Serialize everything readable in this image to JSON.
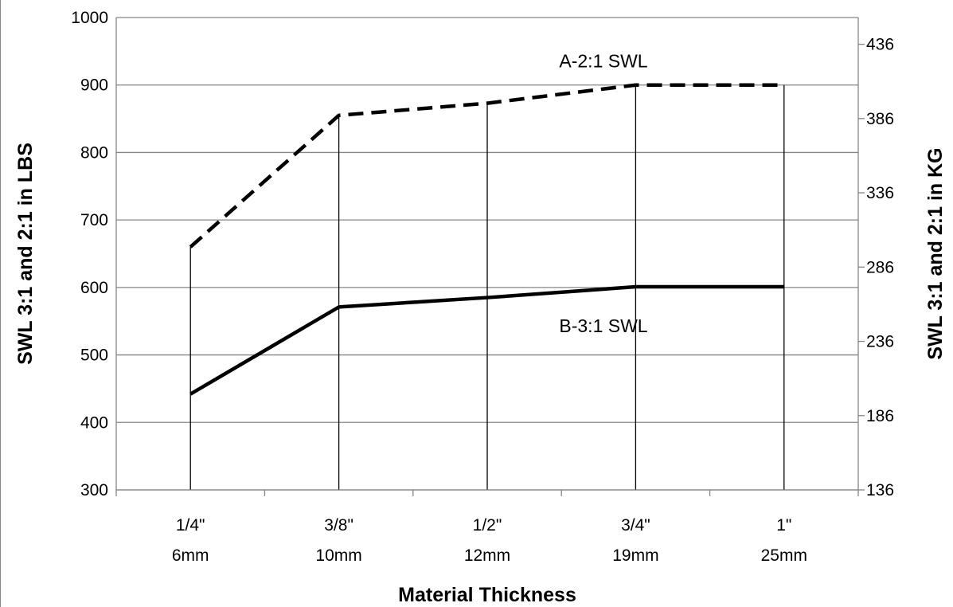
{
  "chart_data": {
    "type": "line",
    "title": "",
    "xlabel": "Material Thickness",
    "ylabel": "SWL 3:1 and 2:1 in LBS",
    "y2label": "SWL 3:1 and 2:1 in KG",
    "categories": [
      {
        "line1": "1/4\"",
        "line2": "6mm"
      },
      {
        "line1": "3/8\"",
        "line2": "10mm"
      },
      {
        "line1": "1/2\"",
        "line2": "12mm"
      },
      {
        "line1": "3/4\"",
        "line2": "19mm"
      },
      {
        "line1": "1\"",
        "line2": "25mm"
      }
    ],
    "ylim": [
      300,
      1000
    ],
    "yticks": [
      "300",
      "400",
      "500",
      "600",
      "700",
      "800",
      "900",
      "1000"
    ],
    "y2lim": [
      136,
      454
    ],
    "y2ticks": [
      "136",
      "186",
      "236",
      "286",
      "336",
      "386",
      "436"
    ],
    "grid": true,
    "series": [
      {
        "name": "A-2:1 SWL",
        "style": "dashed",
        "color": "#000000",
        "values": [
          660,
          855,
          873,
          900,
          900
        ]
      },
      {
        "name": "B-3:1 SWL",
        "style": "solid",
        "color": "#000000",
        "values": [
          442,
          571,
          585,
          601,
          601
        ]
      }
    ]
  }
}
